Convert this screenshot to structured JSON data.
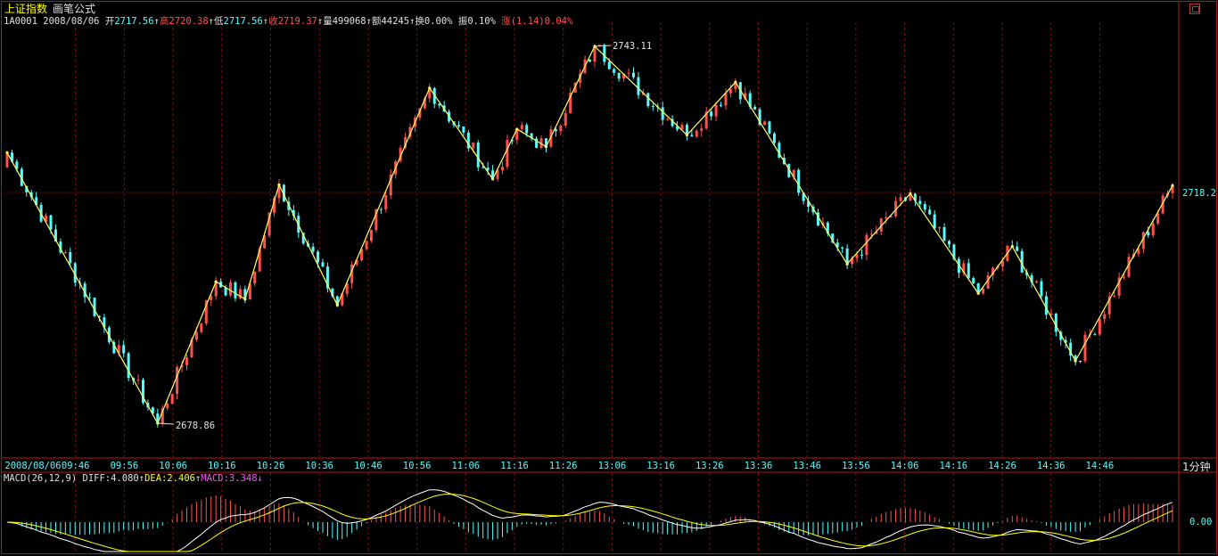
{
  "header": {
    "index_name": "上证指数",
    "formula_name": "画笔公式",
    "code": "1A0001",
    "date": "2008/08/06",
    "open_label": "开",
    "open": "2717.56",
    "open_arrow": "↑",
    "high_label": "高",
    "high": "2720.38",
    "high_arrow": "↑",
    "low_label": "低",
    "low": "2717.56",
    "low_arrow": "↑",
    "close_label": "收",
    "close": "2719.37",
    "close_arrow": "↑",
    "volume_label": "量",
    "volume": "499068",
    "volume_arrow": "↑",
    "amount_label": "额",
    "amount": "44245",
    "amount_arrow": "↑",
    "turnover_label": "换",
    "turnover": "0.00%",
    "amplitude_label": "振",
    "amplitude": "0.10%",
    "change_label": "涨",
    "change": "(1.14)0.04%"
  },
  "macd": {
    "name": "MACD(26,12,9)",
    "diff_label": "DIFF:",
    "diff": "4.080",
    "diff_arrow": "↑",
    "dea_label": "DEA:",
    "dea": "2.406",
    "dea_arrow": "↑",
    "macd_label": "MACD:",
    "macd": "3.348",
    "macd_arrow": "↓",
    "zero_label": "0.00"
  },
  "period_button": "1分钟",
  "colors": {
    "up": "#ff5050",
    "down": "#54fcfc",
    "pen_line": "#ffff66",
    "grid": "#a00000",
    "axis": "#b01818",
    "diff_line": "#ffffff",
    "dea_line": "#ffff00"
  },
  "chart_data": {
    "type": "candlestick",
    "title": "上证指数 画笔公式",
    "x_ticks": [
      "2008/08/06",
      "09:46",
      "09:56",
      "10:06",
      "10:16",
      "10:26",
      "10:36",
      "10:46",
      "10:56",
      "11:06",
      "11:16",
      "11:26",
      "13:06",
      "13:16",
      "13:26",
      "13:36",
      "13:46",
      "13:56",
      "14:06",
      "14:16",
      "14:26",
      "14:36",
      "14:46"
    ],
    "y_range": [
      2674,
      2746
    ],
    "reference_price": 2718.2,
    "reference_label": "2718.2",
    "pen_pivots": [
      {
        "bar": 0,
        "price": 2725.0
      },
      {
        "bar": 31,
        "price": 2678.86
      },
      {
        "bar": 43,
        "price": 2703.0
      },
      {
        "bar": 49,
        "price": 2700.0
      },
      {
        "bar": 56,
        "price": 2719.5
      },
      {
        "bar": 68,
        "price": 2699.0
      },
      {
        "bar": 87,
        "price": 2736.0
      },
      {
        "bar": 100,
        "price": 2720.5
      },
      {
        "bar": 105,
        "price": 2729.0
      },
      {
        "bar": 111,
        "price": 2726.0
      },
      {
        "bar": 121,
        "price": 2743.11
      },
      {
        "bar": 140,
        "price": 2728.0
      },
      {
        "bar": 150,
        "price": 2737.0
      },
      {
        "bar": 173,
        "price": 2706.0
      },
      {
        "bar": 186,
        "price": 2718.0
      },
      {
        "bar": 200,
        "price": 2701.0
      },
      {
        "bar": 207,
        "price": 2709.0
      },
      {
        "bar": 220,
        "price": 2689.5
      },
      {
        "bar": 240,
        "price": 2719.37
      }
    ],
    "annotations": [
      {
        "bar": 121,
        "price": 2743.11,
        "label": "2743.11"
      },
      {
        "bar": 31,
        "price": 2678.86,
        "label": "2678.86"
      }
    ],
    "total_bars": 241,
    "macd_panel": {
      "y_range": [
        -6,
        7
      ],
      "diff_color": "white",
      "dea_color": "yellow"
    }
  }
}
